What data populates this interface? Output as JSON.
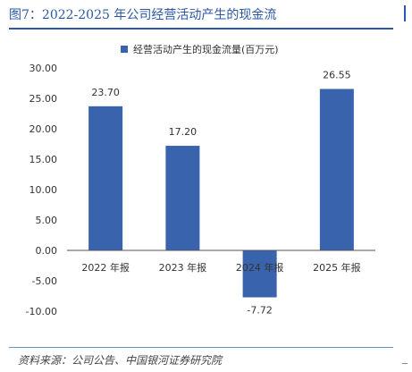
{
  "figure": {
    "title": "图7：2022-2025 年公司经营活动产生的现金流",
    "source": "资料来源：公司公告、中国银河证券研究院"
  },
  "colors": {
    "accent": "#2b57a6",
    "bar": "#3a63ad"
  },
  "chart_data": {
    "type": "bar",
    "categories": [
      "2022 年报",
      "2023 年报",
      "2024 年报",
      "2025 年报"
    ],
    "series": [
      {
        "name": "经营活动产生的现金流量(百万元)",
        "values": [
          23.7,
          17.2,
          -7.72,
          26.55
        ]
      }
    ],
    "data_labels": [
      "23.70",
      "17.20",
      "-7.72",
      "26.55"
    ],
    "ylim": [
      -10,
      30
    ],
    "y_ticks": [
      "30.00",
      "25.00",
      "20.00",
      "15.00",
      "10.00",
      "5.00",
      "0.00",
      "-5.00",
      "-10.00"
    ],
    "grid": false,
    "legend_position": "top"
  }
}
